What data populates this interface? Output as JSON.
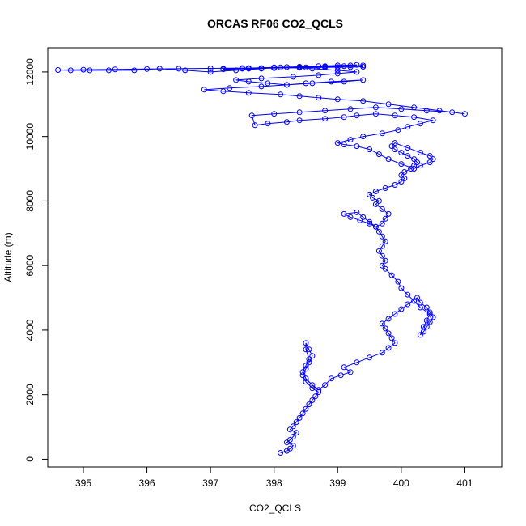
{
  "chart_data": {
    "type": "scatter",
    "title": "ORCAS RF06 CO2_QCLS",
    "xlabel": "CO2_QCLS",
    "ylabel": "Altitude (m)",
    "xlim": [
      394.44,
      401.58
    ],
    "ylim": [
      -240,
      12750
    ],
    "xticks": [
      395,
      396,
      397,
      398,
      399,
      400,
      401
    ],
    "yticks": [
      0,
      2000,
      4000,
      6000,
      8000,
      10000,
      12000
    ],
    "grid": false,
    "color": "#0000ff",
    "series": [
      {
        "x": [
          398.1,
          398.2,
          398.25,
          398.3,
          398.2,
          398.25,
          398.3,
          398.35,
          398.25,
          398.3,
          398.35,
          398.4,
          398.45,
          398.5,
          398.55,
          398.6,
          398.65,
          398.7,
          398.6,
          398.5,
          398.45,
          398.5,
          398.55,
          398.6,
          398.55,
          398.5,
          398.5,
          398.55,
          398.5,
          398.45,
          398.5,
          398.6,
          398.7,
          398.8,
          398.9,
          399.05,
          399.2,
          399.1,
          399.3,
          399.5,
          399.7,
          399.8,
          399.9,
          399.85,
          399.8,
          399.75,
          399.7,
          399.8,
          399.9,
          400.0,
          400.1,
          400.25,
          400.3,
          400.4,
          400.45,
          400.5,
          400.45,
          400.4,
          400.35,
          400.3,
          400.35,
          400.4,
          400.45,
          400.3,
          400.2,
          400.1,
          400.0,
          399.95,
          399.85,
          399.75,
          399.7,
          399.75,
          399.7,
          399.65,
          399.7,
          399.75,
          399.7,
          399.65,
          399.6,
          399.5,
          399.4,
          399.3,
          399.1,
          399.2,
          399.35,
          399.5,
          399.6,
          399.7,
          399.75,
          399.8,
          399.7,
          399.6,
          399.65,
          399.55,
          399.5,
          399.6,
          399.75,
          399.9,
          400.0,
          400.05,
          400.0,
          400.05,
          400.15,
          400.2,
          400.25,
          400.2,
          400.1,
          400.0,
          399.9,
          399.85,
          399.9,
          400.1,
          400.3,
          400.45,
          400.5,
          400.45,
          400.3,
          400.2,
          400.0,
          399.8,
          399.65,
          399.5,
          399.3,
          399.1,
          399.0,
          399.2,
          399.4,
          399.7,
          399.95,
          400.1,
          400.3,
          400.5,
          400.2,
          399.9,
          399.6,
          399.3,
          399.1,
          398.8,
          398.4,
          398.2,
          397.9,
          397.7,
          397.65,
          398.0,
          398.4,
          398.8,
          399.2,
          399.6,
          400.0,
          400.4,
          400.8,
          401.0,
          400.6,
          400.2,
          399.8,
          399.4,
          399.0,
          398.7,
          398.4,
          398.1,
          397.6,
          397.2,
          396.9,
          397.3,
          397.8,
          398.2,
          398.6,
          399.1,
          399.4,
          398.9,
          398.5,
          398.2,
          397.9,
          397.6,
          397.4,
          397.8,
          398.3,
          398.7,
          399.0,
          399.3,
          399.0,
          398.6,
          398.2,
          397.8,
          397.4,
          397.0,
          396.6,
          396.2,
          395.8,
          395.4,
          395.1,
          394.8,
          394.6,
          395.0,
          395.5,
          396.0,
          396.5,
          397.0,
          397.5,
          398.0,
          398.5,
          399.0,
          399.4,
          399.2,
          398.8,
          398.4,
          398.0,
          397.6,
          397.2,
          397.6,
          398.0,
          398.4,
          398.8,
          399.2,
          399.3,
          399.0,
          398.7,
          398.4,
          398.1,
          397.8,
          397.5,
          397.2,
          397.6,
          398.0,
          398.4,
          398.8,
          399.1,
          399.4
        ],
        "y": [
          200,
          260,
          330,
          420,
          520,
          600,
          700,
          820,
          920,
          1020,
          1150,
          1280,
          1420,
          1560,
          1700,
          1830,
          1950,
          2080,
          2200,
          2400,
          2600,
          2800,
          3000,
          3200,
          3400,
          3600,
          3400,
          3100,
          2900,
          2700,
          2500,
          2300,
          2150,
          2300,
          2500,
          2600,
          2700,
          2850,
          3000,
          3150,
          3300,
          3450,
          3600,
          3750,
          3900,
          4050,
          4200,
          4350,
          4500,
          4650,
          4800,
          5000,
          4850,
          4700,
          4550,
          4400,
          4250,
          4100,
          3950,
          3850,
          4100,
          4300,
          4500,
          4700,
          4900,
          5100,
          5300,
          5500,
          5700,
          5900,
          6000,
          6150,
          6300,
          6450,
          6600,
          6750,
          6900,
          7050,
          7200,
          7350,
          7500,
          7650,
          7600,
          7500,
          7400,
          7300,
          7200,
          7300,
          7450,
          7600,
          7750,
          7900,
          8000,
          8100,
          8200,
          8300,
          8400,
          8500,
          8600,
          8700,
          8800,
          8900,
          9000,
          9100,
          9200,
          9300,
          9400,
          9500,
          9600,
          9700,
          9800,
          9650,
          9500,
          9400,
          9300,
          9200,
          9100,
          9000,
          9150,
          9300,
          9450,
          9600,
          9700,
          9750,
          9800,
          9900,
          10000,
          10100,
          10200,
          10300,
          10400,
          10500,
          10600,
          10650,
          10700,
          10650,
          10600,
          10550,
          10500,
          10450,
          10400,
          10350,
          10650,
          10700,
          10750,
          10800,
          10850,
          10900,
          10850,
          10800,
          10750,
          10700,
          10800,
          10900,
          11000,
          11100,
          11150,
          11200,
          11250,
          11300,
          11350,
          11400,
          11450,
          11500,
          11550,
          11600,
          11650,
          11700,
          11750,
          11700,
          11650,
          11600,
          11650,
          11700,
          11750,
          11800,
          11850,
          11900,
          11950,
          12000,
          12050,
          12100,
          12150,
          12100,
          12050,
          12000,
          12050,
          12100,
          12050,
          12050,
          12050,
          12050,
          12060,
          12070,
          12080,
          12090,
          12100,
          12110,
          12120,
          12130,
          12140,
          12150,
          12160,
          12150,
          12140,
          12130,
          12120,
          12110,
          12100,
          12120,
          12140,
          12160,
          12180,
          12200,
          12220,
          12200,
          12180,
          12160,
          12140,
          12120,
          12100,
          12080,
          12100,
          12120,
          12140,
          12160,
          12180,
          12200
        ]
      }
    ]
  }
}
